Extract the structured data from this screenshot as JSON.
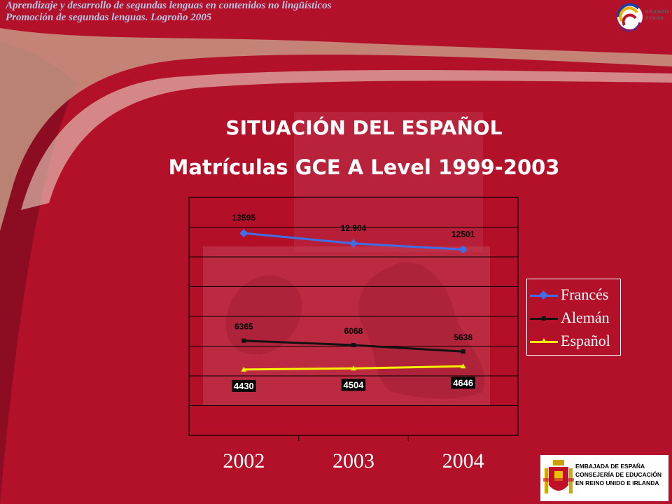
{
  "header": {
    "line1": "Aprendizaje y desarrollo de segundas lenguas en contenidos no lingüísticos",
    "line2": "Promoción de segundas lenguas. Logroño 2005"
  },
  "logo": {
    "line1": "educación",
    "line2": "exterior"
  },
  "slide": {
    "title": "SITUACIÓN DEL ESPAÑOL",
    "subtitle": "Matrículas GCE A Level 1999-2003"
  },
  "chart_data": {
    "type": "line",
    "categories": [
      "2002",
      "2003",
      "2004"
    ],
    "ylim": [
      0,
      16000
    ],
    "grid": true,
    "legend_position": "right",
    "series": [
      {
        "name": "Francés",
        "values": [
          13595,
          12904,
          12501
        ],
        "labels": [
          "13595",
          "12.904",
          "12501"
        ],
        "color": "#3f6fe8",
        "marker": "diamond"
      },
      {
        "name": "Alemán",
        "values": [
          6365,
          6068,
          5638
        ],
        "labels": [
          "6365",
          "6068",
          "5638"
        ],
        "color": "#111111",
        "marker": "square"
      },
      {
        "name": "Español",
        "values": [
          4430,
          4504,
          4646
        ],
        "labels": [
          "4430",
          "4504",
          "4646"
        ],
        "color": "#f7f000",
        "marker": "triangle"
      }
    ]
  },
  "embassy": {
    "line1": "EMBAJADA DE ESPAÑA",
    "line2": "CONSEJERÍA DE EDUCACIÓN",
    "line3": "EN REINO UNIDO E IRLANDA"
  },
  "colors": {
    "background": "#b3102a",
    "header_text": "#b7c7e8",
    "title_text": "#ffffff"
  }
}
